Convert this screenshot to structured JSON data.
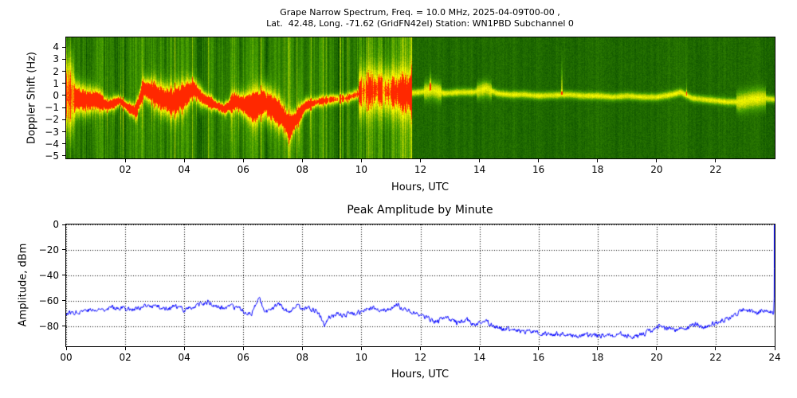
{
  "figure": {
    "background": "#ffffff",
    "spectrogram": {
      "title_line1": "Grape Narrow Spectrum, Freq. = 10.0 MHz, 2025-04-09T00-00 ,",
      "title_line2": "Lat.  42.48, Long. -71.62 (GridFN42el) Station: WN1PBD Subchannel 0",
      "ylabel": "Doppler Shift (Hz)",
      "xlabel": "Hours, UTC",
      "xtick_labels": [
        "02",
        "04",
        "06",
        "08",
        "10",
        "12",
        "14",
        "16",
        "18",
        "20",
        "22"
      ],
      "ytick_labels": [
        "4",
        "3",
        "2",
        "1",
        "0",
        "−1",
        "−2",
        "−3",
        "−4",
        "−5"
      ]
    },
    "amplitude": {
      "title": "Peak Amplitude by Minute",
      "ylabel": "Amplitude, dBm",
      "xlabel": "Hours, UTC",
      "xtick_labels": [
        "00",
        "02",
        "04",
        "06",
        "08",
        "10",
        "12",
        "14",
        "16",
        "18",
        "20",
        "22",
        "24"
      ],
      "ytick_labels": [
        "0",
        "−20",
        "−40",
        "−60",
        "−80"
      ]
    }
  },
  "chart_data": [
    {
      "type": "heatmap",
      "title": "Grape Narrow Spectrum, Freq. = 10.0 MHz, 2025-04-09T00-00, Lat. 42.48, Long. -71.62 (GridFN42el) Station: WN1PBD Subchannel 0",
      "xlabel": "Hours, UTC",
      "ylabel": "Doppler Shift (Hz)",
      "xlim": [
        0,
        24
      ],
      "ylim": [
        -5.2,
        4.8
      ],
      "xticks": [
        2,
        4,
        6,
        8,
        10,
        12,
        14,
        16,
        18,
        20,
        22
      ],
      "yticks": [
        4,
        3,
        2,
        1,
        0,
        -1,
        -2,
        -3,
        -4,
        -5
      ],
      "colormap": [
        "#004000",
        "#48a000",
        "#bed400",
        "#ffff00",
        "#ff2800"
      ],
      "description": "Green noise spectrogram with bright yellow/red carrier-doppler trace near 0 Hz; wide noisy spread with vertical streaks 00-12 UTC, bright wide band 10-11.5 UTC, thin stable yellow line 12-24 UTC",
      "doppler_trace": {
        "name": "carrier-doppler-centroid-hz",
        "x": [
          0,
          0.3,
          0.7,
          1,
          1.4,
          1.8,
          2.1,
          2.35,
          2.6,
          2.9,
          3.2,
          3.6,
          4,
          4.3,
          4.6,
          5,
          5.35,
          5.7,
          6,
          6.3,
          6.7,
          7,
          7.3,
          7.55,
          7.8,
          8.1,
          8.5,
          9,
          9.5,
          10,
          10.5,
          11,
          11.5,
          12,
          12.4,
          12.8,
          13.3,
          13.8,
          14.2,
          14.6,
          15,
          15.5,
          16,
          16.5,
          17,
          17.5,
          18,
          18.5,
          19,
          19.5,
          20,
          20.5,
          20.8,
          21.2,
          21.6,
          22,
          22.4,
          22.8,
          23.2,
          23.6,
          24
        ],
        "y": [
          0.2,
          -0.2,
          -0.4,
          -0.3,
          -0.8,
          -0.4,
          -1.0,
          -1.3,
          0.6,
          0.3,
          -0.2,
          -0.5,
          0,
          0.6,
          -0.2,
          -0.7,
          -1.1,
          -0.4,
          -0.7,
          -0.9,
          -0.5,
          -1.0,
          -1.6,
          -2.6,
          -1.8,
          -0.8,
          -0.5,
          -0.3,
          -0.2,
          0.3,
          0.5,
          0.3,
          0.2,
          0.3,
          0.5,
          0.2,
          0.3,
          0.3,
          0.6,
          0.2,
          0.1,
          0.1,
          0,
          0.05,
          0.1,
          0,
          0,
          -0.1,
          0,
          -0.1,
          -0.1,
          0.1,
          0.3,
          -0.2,
          -0.3,
          -0.4,
          -0.5,
          -0.5,
          -0.3,
          -0.2,
          -0.3
        ]
      }
    },
    {
      "type": "line",
      "title": "Peak Amplitude by Minute",
      "xlabel": "Hours, UTC",
      "ylabel": "Amplitude, dBm",
      "xlim": [
        0,
        24
      ],
      "ylim": [
        -96,
        0
      ],
      "xticks": [
        0,
        2,
        4,
        6,
        8,
        10,
        12,
        14,
        16,
        18,
        20,
        22,
        24
      ],
      "yticks": [
        0,
        -20,
        -40,
        -60,
        -80
      ],
      "grid": "dotted",
      "series": [
        {
          "name": "Peak amplitude",
          "color": "#0000ff",
          "x": [
            0,
            0.3,
            0.7,
            1,
            1.3,
            1.7,
            2,
            2.3,
            2.7,
            3,
            3.3,
            3.7,
            4,
            4.3,
            4.6,
            4.8,
            5,
            5.3,
            5.6,
            6,
            6.3,
            6.55,
            6.65,
            6.8,
            7,
            7.25,
            7.4,
            7.6,
            7.8,
            8,
            8.2,
            8.5,
            8.75,
            8.9,
            9.1,
            9.4,
            9.7,
            10,
            10.3,
            10.6,
            10.9,
            11.2,
            11.35,
            11.6,
            11.9,
            12.2,
            12.5,
            12.8,
            13,
            13.3,
            13.6,
            13.9,
            14.2,
            14.5,
            14.8,
            15.2,
            15.6,
            16,
            16.4,
            16.8,
            17.2,
            17.6,
            18,
            18.4,
            18.8,
            19.2,
            19.6,
            19.9,
            20.1,
            20.4,
            20.7,
            21,
            21.3,
            21.6,
            22,
            22.3,
            22.6,
            23,
            23.3,
            23.6,
            23.9,
            23.98,
            24
          ],
          "y": [
            -70,
            -69,
            -67,
            -68,
            -66,
            -65,
            -66,
            -67,
            -65,
            -64,
            -66,
            -65,
            -67,
            -65,
            -63,
            -61,
            -64,
            -66,
            -65,
            -68,
            -70,
            -57,
            -65,
            -68,
            -67,
            -62,
            -66,
            -70,
            -64,
            -67,
            -66,
            -68,
            -78,
            -73,
            -71,
            -72,
            -70,
            -69,
            -66,
            -68,
            -67,
            -63,
            -66,
            -68,
            -70,
            -73,
            -77,
            -74,
            -75,
            -78,
            -76,
            -79,
            -76,
            -80,
            -82,
            -83,
            -85,
            -86,
            -87,
            -86,
            -88,
            -87,
            -88,
            -88,
            -87,
            -88,
            -86,
            -83,
            -80,
            -82,
            -83,
            -81,
            -79,
            -81,
            -77,
            -75,
            -72,
            -67,
            -70,
            -68,
            -70,
            -70,
            0
          ]
        }
      ]
    }
  ]
}
